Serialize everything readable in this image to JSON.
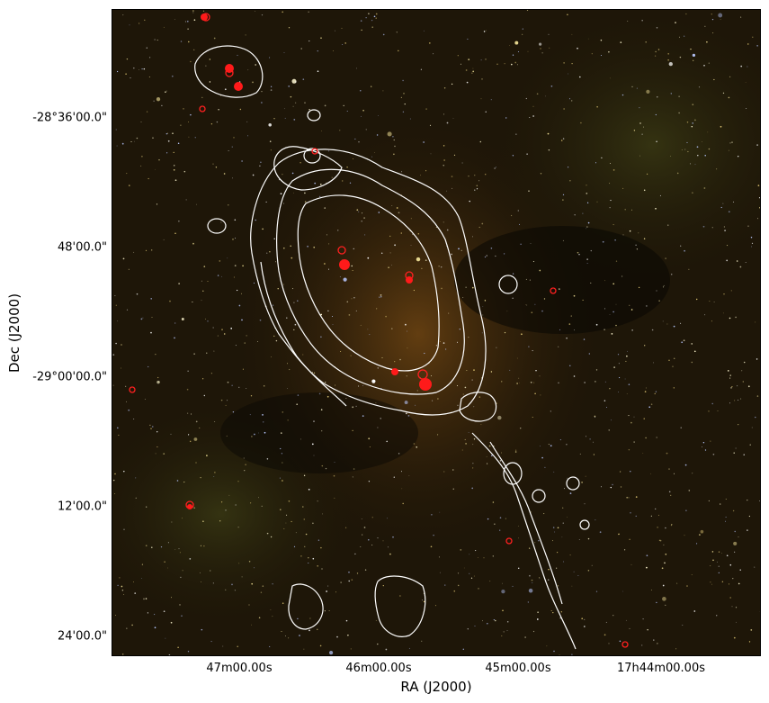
{
  "figure": {
    "xlabel": "RA (J2000)",
    "ylabel": "Dec (J2000)",
    "x_ticks": [
      "47m00.00s",
      "46m00.00s",
      "45m00.00s",
      "17h44m00.00s"
    ],
    "y_ticks": [
      "-28°36'00.0\"",
      "48'00.0\"",
      "-29°00'00.0\"",
      "12'00.0\"",
      "24'00.0\""
    ]
  },
  "colors": {
    "background": "#1a1206",
    "contour": "#ffffff",
    "sources": "#ff2020"
  }
}
